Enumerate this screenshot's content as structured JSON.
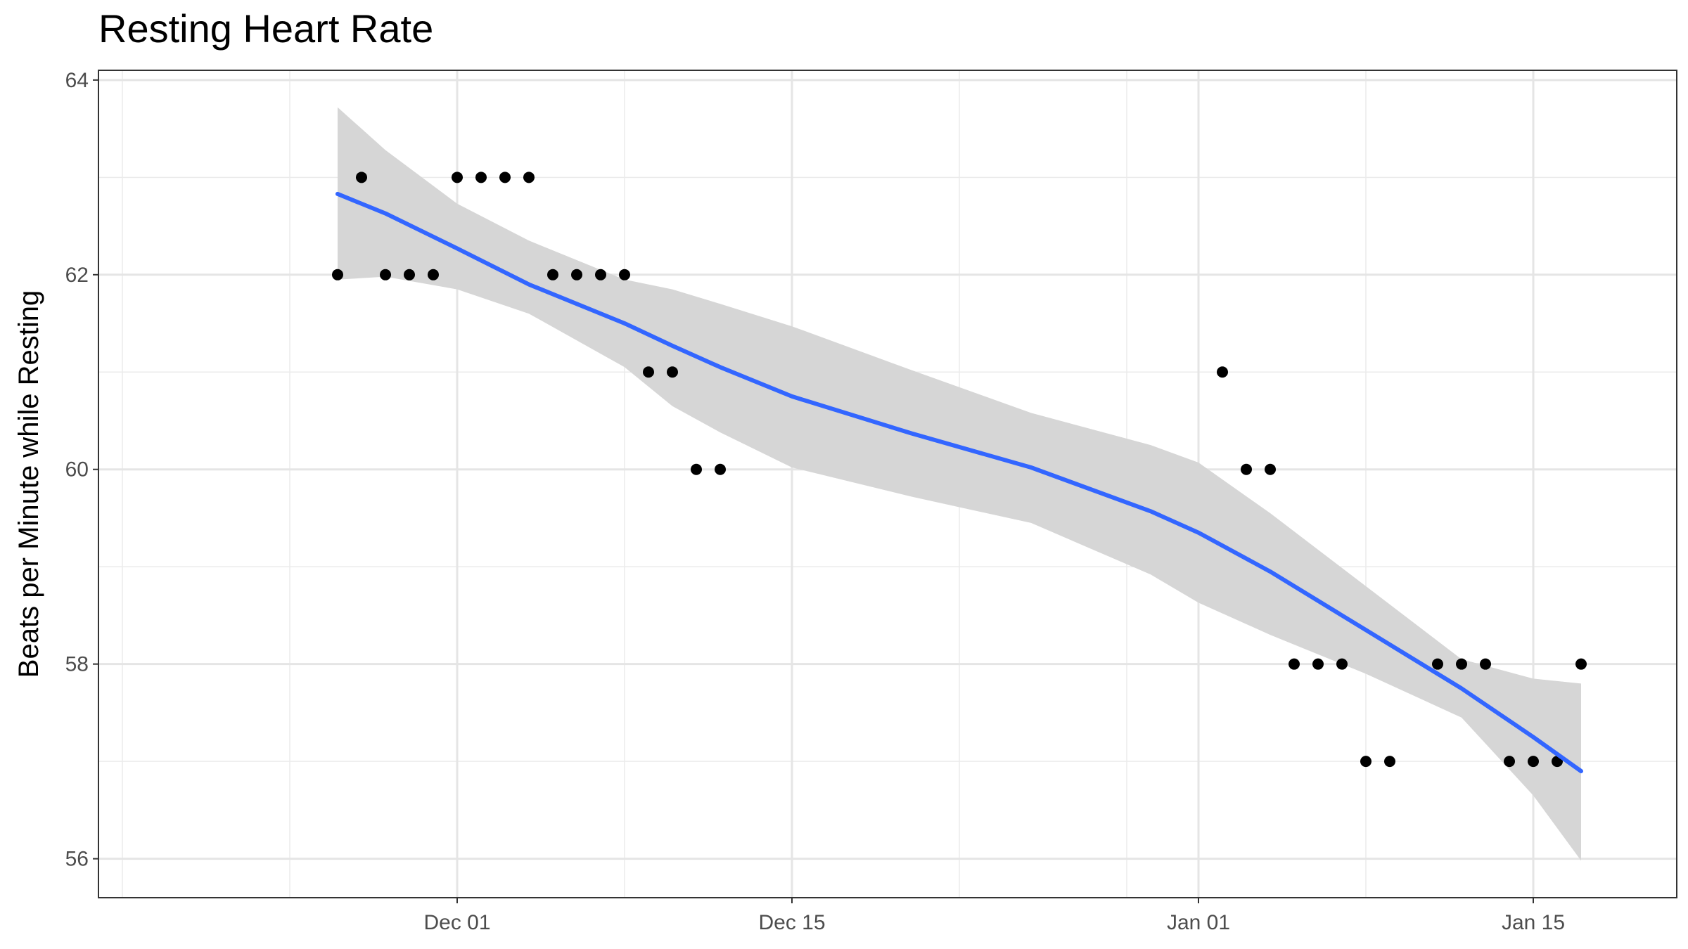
{
  "chart_data": {
    "type": "scatter",
    "title": "Resting Heart Rate",
    "xlabel": "",
    "ylabel": "Beats per Minute while Resting",
    "x_axis_type": "date",
    "xlim": [
      "2023-11-16",
      "2024-01-21"
    ],
    "ylim": [
      55.6,
      64.1
    ],
    "yticks": [
      56,
      58,
      60,
      62,
      64
    ],
    "xticks": [
      {
        "date": "2023-12-01",
        "label": "Dec 01"
      },
      {
        "date": "2023-12-15",
        "label": "Dec 15"
      },
      {
        "date": "2024-01-01",
        "label": "Jan 01"
      },
      {
        "date": "2024-01-15",
        "label": "Jan 15"
      }
    ],
    "minor_x_gridlines": [
      "2023-11-17",
      "2023-11-24",
      "2023-12-08",
      "2023-12-22",
      "2023-12-29",
      "2024-01-08"
    ],
    "grid": true,
    "points": [
      {
        "x": "2023-11-26",
        "y": 62
      },
      {
        "x": "2023-11-27",
        "y": 63
      },
      {
        "x": "2023-11-28",
        "y": 62
      },
      {
        "x": "2023-11-29",
        "y": 62
      },
      {
        "x": "2023-11-30",
        "y": 62
      },
      {
        "x": "2023-12-01",
        "y": 63
      },
      {
        "x": "2023-12-02",
        "y": 63
      },
      {
        "x": "2023-12-03",
        "y": 63
      },
      {
        "x": "2023-12-04",
        "y": 63
      },
      {
        "x": "2023-12-05",
        "y": 62
      },
      {
        "x": "2023-12-06",
        "y": 62
      },
      {
        "x": "2023-12-07",
        "y": 62
      },
      {
        "x": "2023-12-08",
        "y": 62
      },
      {
        "x": "2023-12-09",
        "y": 61
      },
      {
        "x": "2023-12-10",
        "y": 61
      },
      {
        "x": "2023-12-11",
        "y": 60
      },
      {
        "x": "2023-12-12",
        "y": 60
      },
      {
        "x": "2024-01-02",
        "y": 61
      },
      {
        "x": "2024-01-03",
        "y": 60
      },
      {
        "x": "2024-01-04",
        "y": 60
      },
      {
        "x": "2024-01-05",
        "y": 58
      },
      {
        "x": "2024-01-06",
        "y": 58
      },
      {
        "x": "2024-01-07",
        "y": 58
      },
      {
        "x": "2024-01-08",
        "y": 57
      },
      {
        "x": "2024-01-09",
        "y": 57
      },
      {
        "x": "2024-01-11",
        "y": 58
      },
      {
        "x": "2024-01-12",
        "y": 58
      },
      {
        "x": "2024-01-13",
        "y": 58
      },
      {
        "x": "2024-01-14",
        "y": 57
      },
      {
        "x": "2024-01-15",
        "y": 57
      },
      {
        "x": "2024-01-16",
        "y": 57
      },
      {
        "x": "2024-01-17",
        "y": 58
      }
    ],
    "smooth": {
      "method": "loess",
      "color": "#3366ff",
      "band_color": "#d6d6d6",
      "fit": [
        {
          "x": "2023-11-26",
          "y": 62.83,
          "lo": 61.95,
          "hi": 63.72
        },
        {
          "x": "2023-11-28",
          "y": 62.63,
          "lo": 61.98,
          "hi": 63.28
        },
        {
          "x": "2023-12-01",
          "y": 62.27,
          "lo": 61.85,
          "hi": 62.73
        },
        {
          "x": "2023-12-04",
          "y": 61.9,
          "lo": 61.6,
          "hi": 62.35
        },
        {
          "x": "2023-12-08",
          "y": 61.5,
          "lo": 61.05,
          "hi": 61.95
        },
        {
          "x": "2023-12-10",
          "y": 61.27,
          "lo": 60.65,
          "hi": 61.85
        },
        {
          "x": "2023-12-12",
          "y": 61.05,
          "lo": 60.38,
          "hi": 61.7
        },
        {
          "x": "2023-12-15",
          "y": 60.75,
          "lo": 60.02,
          "hi": 61.47
        },
        {
          "x": "2023-12-20",
          "y": 60.37,
          "lo": 59.72,
          "hi": 61.02
        },
        {
          "x": "2023-12-25",
          "y": 60.02,
          "lo": 59.45,
          "hi": 60.58
        },
        {
          "x": "2023-12-30",
          "y": 59.57,
          "lo": 58.92,
          "hi": 60.25
        },
        {
          "x": "2024-01-01",
          "y": 59.35,
          "lo": 58.63,
          "hi": 60.07
        },
        {
          "x": "2024-01-04",
          "y": 58.95,
          "lo": 58.3,
          "hi": 59.55
        },
        {
          "x": "2024-01-08",
          "y": 58.35,
          "lo": 57.9,
          "hi": 58.8
        },
        {
          "x": "2024-01-12",
          "y": 57.75,
          "lo": 57.45,
          "hi": 58.05
        },
        {
          "x": "2024-01-15",
          "y": 57.25,
          "lo": 56.65,
          "hi": 57.85
        },
        {
          "x": "2024-01-17",
          "y": 56.9,
          "lo": 55.98,
          "hi": 57.8
        }
      ]
    }
  }
}
